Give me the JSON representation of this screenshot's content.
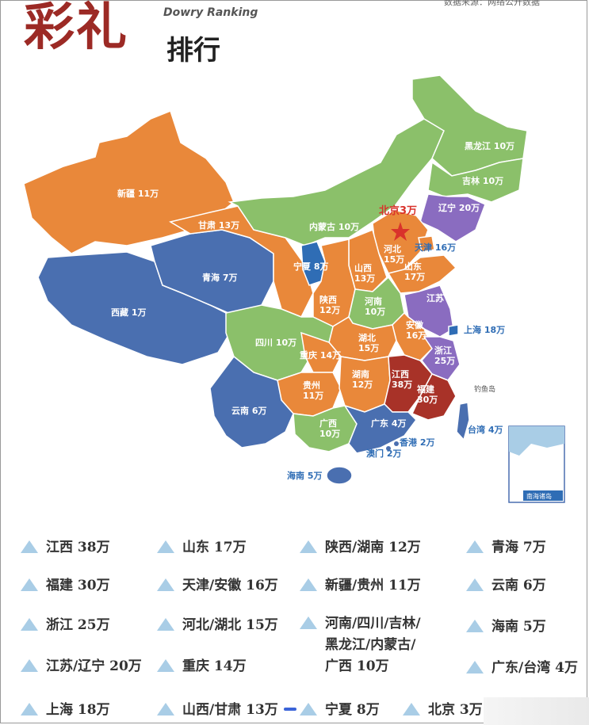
{
  "title": {
    "big": "彩礼",
    "en": "Dowry Ranking",
    "small": "排行"
  },
  "source_note": "数据来源：网络公开数据",
  "map": {
    "provinces": [
      {
        "id": "xinjiang",
        "name": "新疆",
        "value": "11万",
        "color": "#e9883a"
      },
      {
        "id": "xizang",
        "name": "西藏",
        "value": "1万",
        "color": "#4a6fb0"
      },
      {
        "id": "qinghai",
        "name": "青海",
        "value": "7万",
        "color": "#4a6fb0"
      },
      {
        "id": "gansu",
        "name": "甘肃",
        "value": "13万",
        "color": "#e9883a"
      },
      {
        "id": "neimenggu",
        "name": "内蒙古",
        "value": "10万",
        "color": "#8bc06a"
      },
      {
        "id": "heilongjiang",
        "name": "黑龙江",
        "value": "10万",
        "color": "#8bc06a"
      },
      {
        "id": "jilin",
        "name": "吉林",
        "value": "10万",
        "color": "#8bc06a"
      },
      {
        "id": "liaoning",
        "name": "辽宁",
        "value": "20万",
        "color": "#8a6cc0"
      },
      {
        "id": "beijing",
        "name": "北京",
        "value": "3万",
        "color": "#d9322b"
      },
      {
        "id": "tianjin",
        "name": "天津",
        "value": "16万",
        "color": "#e9883a"
      },
      {
        "id": "hebei",
        "name": "河北",
        "value": "15万",
        "color": "#e9883a"
      },
      {
        "id": "ningxia",
        "name": "宁夏",
        "value": "8万",
        "color": "#2f6db5"
      },
      {
        "id": "shanxi",
        "name": "山西",
        "value": "13万",
        "color": "#e9883a"
      },
      {
        "id": "shandong",
        "name": "山东",
        "value": "17万",
        "color": "#e9883a"
      },
      {
        "id": "shaanxi",
        "name": "陕西",
        "value": "12万",
        "color": "#e9883a"
      },
      {
        "id": "henan",
        "name": "河南",
        "value": "10万",
        "color": "#8bc06a"
      },
      {
        "id": "jiangsu",
        "name": "江苏",
        "value": "20万",
        "color": "#8a6cc0"
      },
      {
        "id": "shanghai",
        "name": "上海",
        "value": "18万",
        "color": "#2f6db5"
      },
      {
        "id": "anhui",
        "name": "安徽",
        "value": "16万",
        "color": "#e9883a"
      },
      {
        "id": "hubei",
        "name": "湖北",
        "value": "15万",
        "color": "#e9883a"
      },
      {
        "id": "sichuan",
        "name": "四川",
        "value": "10万",
        "color": "#8bc06a"
      },
      {
        "id": "chongqing",
        "name": "重庆",
        "value": "14万",
        "color": "#e9883a"
      },
      {
        "id": "zhejiang",
        "name": "浙江",
        "value": "25万",
        "color": "#8a6cc0"
      },
      {
        "id": "guizhou",
        "name": "贵州",
        "value": "11万",
        "color": "#e9883a"
      },
      {
        "id": "hunan",
        "name": "湖南",
        "value": "12万",
        "color": "#e9883a"
      },
      {
        "id": "jiangxi",
        "name": "江西",
        "value": "38万",
        "color": "#a83228"
      },
      {
        "id": "fujian",
        "name": "福建",
        "value": "30万",
        "color": "#a83228"
      },
      {
        "id": "yunnan",
        "name": "云南",
        "value": "6万",
        "color": "#4a6fb0"
      },
      {
        "id": "guangxi",
        "name": "广西",
        "value": "10万",
        "color": "#8bc06a"
      },
      {
        "id": "guangdong",
        "name": "广东",
        "value": "4万",
        "color": "#4a6fb0"
      },
      {
        "id": "xianggang",
        "name": "香港",
        "value": "2万",
        "color": "#4a6fb0"
      },
      {
        "id": "aomen",
        "name": "澳门",
        "value": "2万",
        "color": "#4a6fb0"
      },
      {
        "id": "hainan",
        "name": "海南",
        "value": "5万",
        "color": "#4a6fb0"
      },
      {
        "id": "taiwan",
        "name": "台湾",
        "value": "4万",
        "color": "#4a6fb0"
      }
    ],
    "diaoyudao": "钓鱼岛",
    "nanhai": "南海诸岛"
  },
  "legend": [
    {
      "text": "江西  38万"
    },
    {
      "text": "山东  17万"
    },
    {
      "text": "陕西/湖南  12万"
    },
    {
      "text": "青海  7万"
    },
    {
      "text": "福建  30万"
    },
    {
      "text": "天津/安徽  16万"
    },
    {
      "text": "新疆/贵州  11万"
    },
    {
      "text": "云南  6万"
    },
    {
      "text": "浙江  25万"
    },
    {
      "text": "河北/湖北  15万"
    },
    {
      "text": "河南/四川/吉林/"
    },
    {
      "text": "黑龙江/内蒙古/"
    },
    {
      "text": "广西  10万"
    },
    {
      "text": "海南  5万"
    },
    {
      "text": "江苏/辽宁  20万"
    },
    {
      "text": "重庆  14万"
    },
    {
      "text": "广东/台湾  4万"
    },
    {
      "text": "上海  18万"
    },
    {
      "text": "山西/甘肃  13万"
    },
    {
      "text": "宁夏  8万"
    },
    {
      "text": "北京  3万"
    }
  ]
}
